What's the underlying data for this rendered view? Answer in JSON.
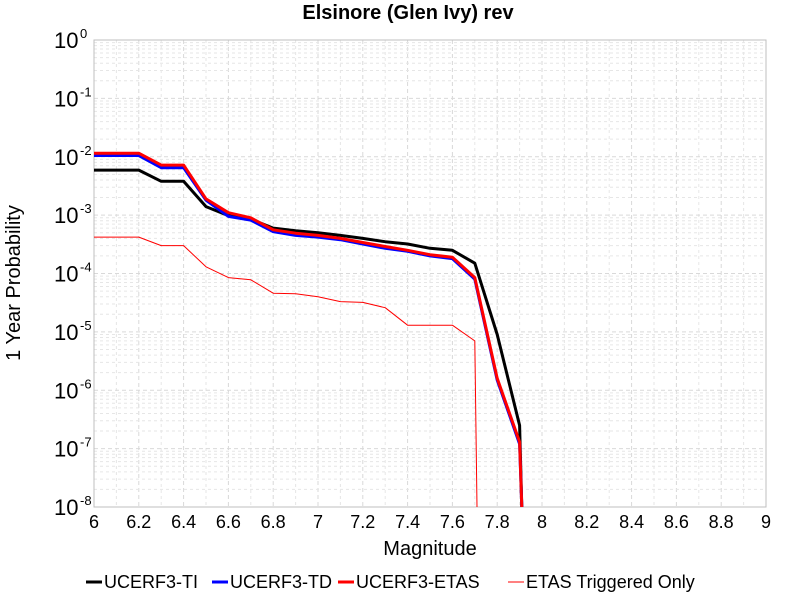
{
  "chart_data": {
    "type": "line",
    "title": "Elsinore (Glen Ivy) rev",
    "xlabel": "Magnitude",
    "ylabel": "1 Year Probability",
    "xlim": [
      6,
      9
    ],
    "ylim": [
      1e-08,
      1
    ],
    "yscale": "log",
    "grid": true,
    "legend_position": "bottom",
    "x_ticks": [
      "6",
      "6.2",
      "6.4",
      "6.6",
      "6.8",
      "7",
      "7.2",
      "7.4",
      "7.6",
      "7.8",
      "8",
      "8.2",
      "8.4",
      "8.6",
      "8.8",
      "9"
    ],
    "y_ticks": [
      {
        "base": "10",
        "exp": "0"
      },
      {
        "base": "10",
        "exp": "-1"
      },
      {
        "base": "10",
        "exp": "-2"
      },
      {
        "base": "10",
        "exp": "-3"
      },
      {
        "base": "10",
        "exp": "-4"
      },
      {
        "base": "10",
        "exp": "-5"
      },
      {
        "base": "10",
        "exp": "-6"
      },
      {
        "base": "10",
        "exp": "-7"
      },
      {
        "base": "10",
        "exp": "-8"
      }
    ],
    "series": [
      {
        "name": "UCERF3-TI",
        "color": "#000000",
        "line_width": 3,
        "x": [
          6.0,
          6.2,
          6.3,
          6.4,
          6.5,
          6.6,
          6.7,
          6.8,
          6.9,
          7.0,
          7.1,
          7.2,
          7.3,
          7.4,
          7.5,
          7.6,
          7.7,
          7.8,
          7.9,
          7.91
        ],
        "y": [
          0.0059,
          0.0059,
          0.0038,
          0.0038,
          0.0014,
          0.00098,
          0.00085,
          0.0006,
          0.00054,
          0.0005,
          0.00045,
          0.0004,
          0.00035,
          0.00032,
          0.00027,
          0.00025,
          0.00015,
          9e-06,
          2.5e-07,
          1e-08
        ]
      },
      {
        "name": "UCERF3-TD",
        "color": "#0000ff",
        "line_width": 3,
        "x": [
          6.0,
          6.2,
          6.3,
          6.4,
          6.5,
          6.6,
          6.7,
          6.8,
          6.9,
          7.0,
          7.1,
          7.2,
          7.3,
          7.4,
          7.5,
          7.6,
          7.7,
          7.8,
          7.9,
          7.91
        ],
        "y": [
          0.0105,
          0.0105,
          0.0065,
          0.0065,
          0.0018,
          0.00095,
          0.00082,
          0.00052,
          0.00045,
          0.00042,
          0.00038,
          0.00032,
          0.00027,
          0.00024,
          0.0002,
          0.00018,
          8e-05,
          1.5e-06,
          1.2e-07,
          1e-08
        ]
      },
      {
        "name": "UCERF3-ETAS",
        "color": "#ff0000",
        "line_width": 3,
        "x": [
          6.0,
          6.2,
          6.3,
          6.4,
          6.5,
          6.6,
          6.7,
          6.8,
          6.9,
          7.0,
          7.1,
          7.2,
          7.3,
          7.4,
          7.5,
          7.6,
          7.7,
          7.8,
          7.9,
          7.91
        ],
        "y": [
          0.0115,
          0.0115,
          0.0072,
          0.0072,
          0.0019,
          0.0011,
          0.0009,
          0.00056,
          0.00049,
          0.00045,
          0.0004,
          0.00034,
          0.00029,
          0.00025,
          0.00021,
          0.00019,
          8.5e-05,
          1.6e-06,
          1.3e-07,
          1e-08
        ]
      },
      {
        "name": "ETAS Triggered Only",
        "color": "#ff0000",
        "line_width": 1,
        "x": [
          6.0,
          6.2,
          6.3,
          6.4,
          6.5,
          6.6,
          6.7,
          6.8,
          6.9,
          7.0,
          7.1,
          7.2,
          7.3,
          7.4,
          7.5,
          7.6,
          7.7,
          7.71
        ],
        "y": [
          0.00042,
          0.00042,
          0.0003,
          0.0003,
          0.00013,
          8.5e-05,
          7.8e-05,
          4.6e-05,
          4.5e-05,
          4e-05,
          3.3e-05,
          3.2e-05,
          2.6e-05,
          1.3e-05,
          1.3e-05,
          1.3e-05,
          7e-06,
          1e-08
        ]
      }
    ]
  }
}
